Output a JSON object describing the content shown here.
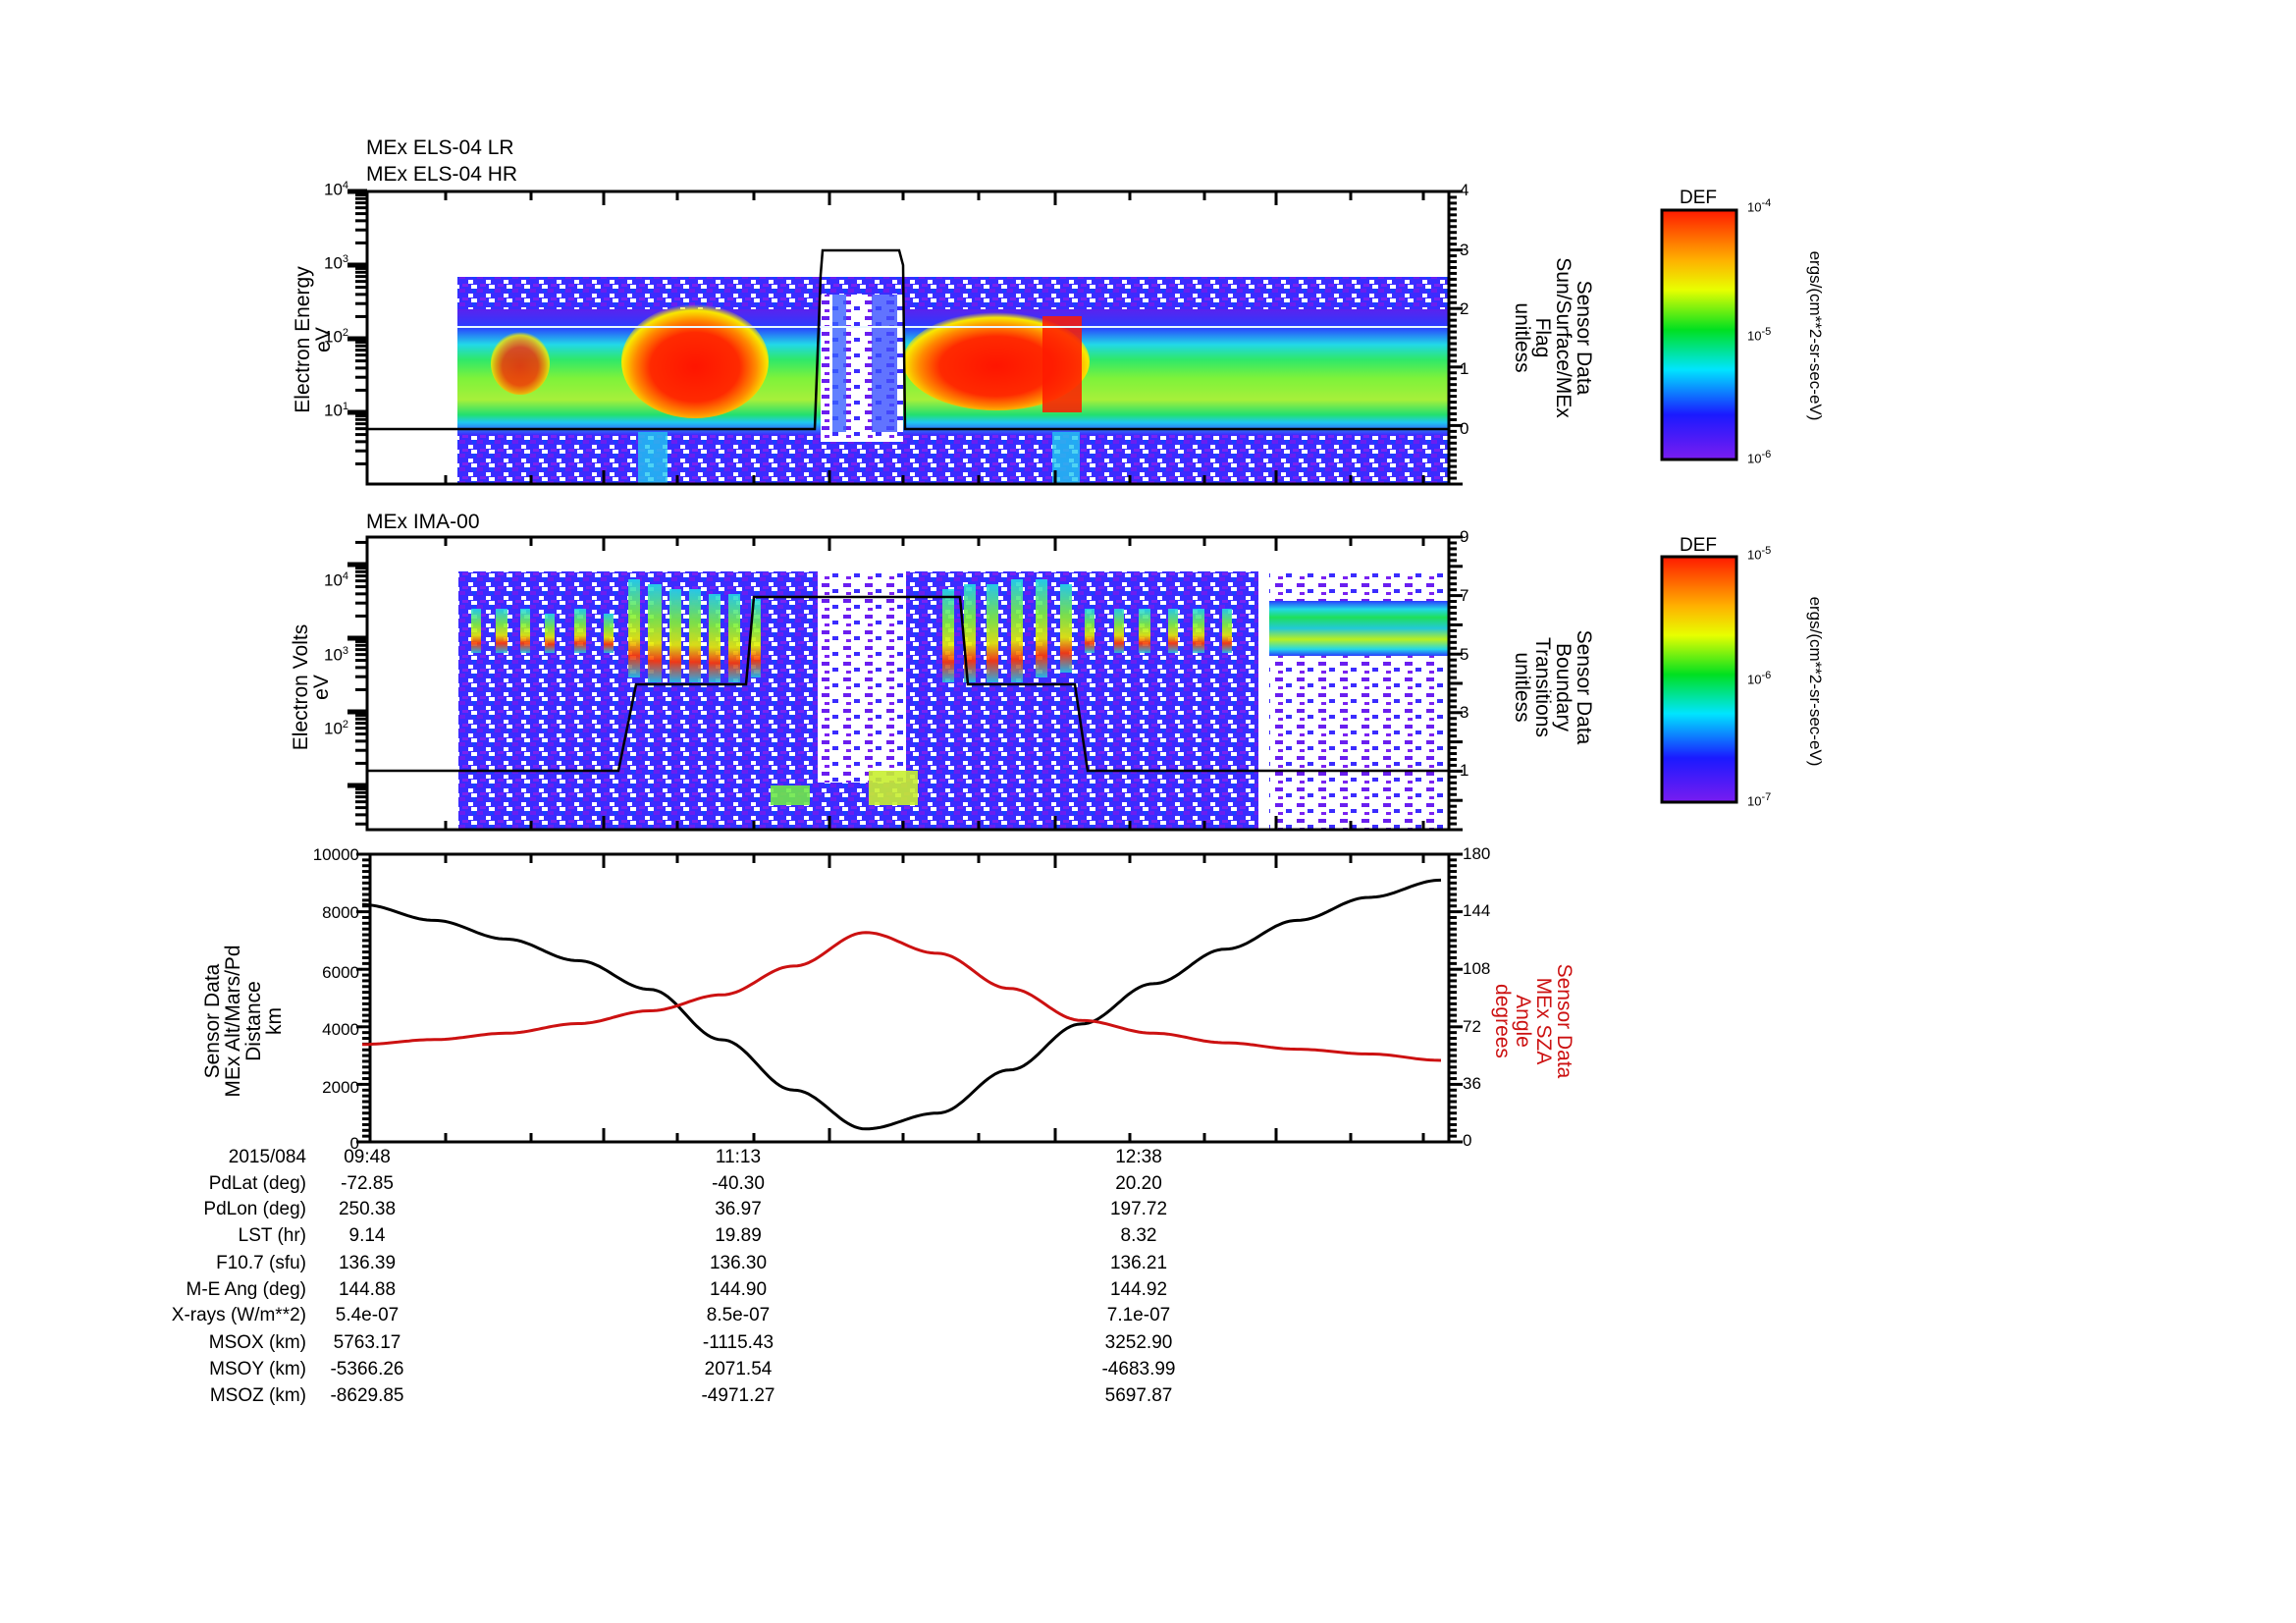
{
  "chart_data": [
    {
      "type": "heatmap",
      "panel": "MEx ELS-04 electron spectrogram",
      "titles": [
        "MEx ELS-04 LR",
        "MEx ELS-04 HR"
      ],
      "ylabel": "Electron Energy\neV",
      "yscale": "log",
      "ylim": [
        1,
        10000
      ],
      "yticks": [
        "10^1",
        "10^2",
        "10^3",
        "10^4"
      ],
      "y2label": "Sensor Data\nSun/Surface/MEx\nFlag\nunitless",
      "y2lim": [
        -1,
        4
      ],
      "y2ticks": [
        0,
        1,
        2,
        3,
        4
      ],
      "colorbar": {
        "title": "DEF",
        "units": "ergs/(cm**2-sr-sec-eV)",
        "range": [
          "10^-6",
          "10^-4"
        ],
        "ticks": [
          "10^-6",
          "10^-5",
          "10^-4"
        ]
      },
      "overlay_line": {
        "name": "Sun/Surface/MEx Flag",
        "segments": [
          {
            "from": "09:48",
            "to": "11:13",
            "value": 0
          },
          {
            "from": "11:14",
            "to": "11:26",
            "value": 3
          },
          {
            "from": "11:27",
            "to": "12:38",
            "value": 0
          }
        ]
      },
      "features": [
        "Intense red flux (~20-100 eV) around 10:25-10:55",
        "Data gap near 11:17-11:22",
        "Intense red flux (~20-150 eV) around 11:40-12:08",
        "Steady green band 5-30 eV thereafter"
      ]
    },
    {
      "type": "heatmap",
      "panel": "MEx IMA-00 ion spectrogram",
      "titles": [
        "MEx IMA-00"
      ],
      "ylabel": "Electron Volts\neV",
      "yscale": "log",
      "ylim": [
        10,
        40000
      ],
      "yticks": [
        "10^2",
        "10^3",
        "10^4"
      ],
      "y2label": "Sensor Data\nBoundary\nTransitions\nunitless",
      "y2lim": [
        -1,
        9
      ],
      "y2ticks": [
        1,
        3,
        5,
        7,
        9
      ],
      "colorbar": {
        "title": "DEF",
        "units": "ergs/(cm**2-sr-sec-eV)",
        "range": [
          "10^-7",
          "10^-5"
        ],
        "ticks": [
          "10^-7",
          "10^-6",
          "10^-5"
        ]
      },
      "overlay_line": {
        "name": "Boundary Transitions",
        "segments": [
          {
            "from": "09:48",
            "to": "10:25",
            "value": 1
          },
          {
            "from": "10:27",
            "to": "10:48",
            "value": 4
          },
          {
            "from": "10:50",
            "to": "11:45",
            "value": 7
          },
          {
            "from": "11:47",
            "to": "12:17",
            "value": 4
          },
          {
            "from": "12:21",
            "to": "14:03",
            "value": 1
          }
        ]
      }
    },
    {
      "type": "line",
      "panel": "Altitude and SZA",
      "x": [
        "09:48",
        "10:05",
        "10:22",
        "10:39",
        "10:56",
        "11:13",
        "11:30",
        "11:47",
        "12:04",
        "12:21",
        "12:38",
        "12:55",
        "13:12",
        "13:29",
        "13:46",
        "14:03"
      ],
      "series": [
        {
          "name": "MEx Alt/Mars/Pd Distance (km)",
          "axis": "left",
          "color": "#000000",
          "values": [
            8250,
            7700,
            7050,
            6300,
            5300,
            3550,
            1800,
            450,
            1000,
            2500,
            4100,
            5500,
            6700,
            7700,
            8500,
            9100
          ]
        },
        {
          "name": "MEx SZA Angle (degrees)",
          "axis": "right",
          "color": "#cc1111",
          "values": [
            61,
            64,
            68,
            74,
            82,
            92,
            110,
            131,
            118,
            96,
            76,
            68,
            62,
            58,
            55,
            51
          ]
        }
      ],
      "ylabel": "Sensor Data\nMEx Alt/Mars/Pd\nDistance\nkm",
      "ylim": [
        0,
        10000
      ],
      "yticks": [
        0,
        2000,
        4000,
        6000,
        8000,
        10000
      ],
      "y2label": "Sensor Data\nMEx SZA\nAngle\ndegrees",
      "y2lim": [
        0,
        180
      ],
      "y2ticks": [
        0,
        36,
        72,
        108,
        144,
        180
      ],
      "xlabel": "2015/084",
      "xticklabels": [
        "09:48",
        "11:13",
        "12:38"
      ],
      "grid": false
    },
    {
      "type": "table",
      "panel": "Ephemeris",
      "columns": [
        "09:48",
        "11:13",
        "12:38"
      ],
      "rows": [
        {
          "label": "PdLat (deg)",
          "values": [
            "-72.85",
            "-40.30",
            "20.20"
          ]
        },
        {
          "label": "PdLon (deg)",
          "values": [
            "250.38",
            "36.97",
            "197.72"
          ]
        },
        {
          "label": "LST (hr)",
          "values": [
            "9.14",
            "19.89",
            "8.32"
          ]
        },
        {
          "label": "F10.7 (sfu)",
          "values": [
            "136.39",
            "136.30",
            "136.21"
          ]
        },
        {
          "label": "M-E Ang (deg)",
          "values": [
            "144.88",
            "144.90",
            "144.92"
          ]
        },
        {
          "label": "X-rays (W/m**2)",
          "values": [
            "5.4e-07",
            "8.5e-07",
            "7.1e-07"
          ]
        },
        {
          "label": "MSOX (km)",
          "values": [
            "5763.17",
            "-1115.43",
            "3252.90"
          ]
        },
        {
          "label": "MSOY (km)",
          "values": [
            "-5366.26",
            "2071.54",
            "-4683.99"
          ]
        },
        {
          "label": "MSOZ (km)",
          "values": [
            "-8629.85",
            "-4971.27",
            "5697.87"
          ]
        }
      ]
    }
  ],
  "panel1": {
    "title1": "MEx ELS-04 LR",
    "title2": "MEx ELS-04 HR",
    "ylabel": "Electron Energy\neV",
    "ylabel_right": "Sensor Data\nSun/Surface/MEx\nFlag\nunitless",
    "left_ticks": [
      {
        "b": "10",
        "e": "4"
      },
      {
        "b": "10",
        "e": "3"
      },
      {
        "b": "10",
        "e": "2"
      },
      {
        "b": "10",
        "e": "1"
      }
    ],
    "right_ticks": [
      "4",
      "3",
      "2",
      "1",
      "0"
    ],
    "cb_title": "DEF",
    "cb_units": "ergs/(cm**2-sr-sec-eV)",
    "cb_ticks": [
      {
        "b": "10",
        "e": "-4"
      },
      {
        "b": "10",
        "e": "-5"
      },
      {
        "b": "10",
        "e": "-6"
      }
    ]
  },
  "panel2": {
    "title": "MEx IMA-00",
    "ylabel": "Electron Volts\neV",
    "ylabel_right": "Sensor Data\nBoundary\nTransitions\nunitless",
    "left_ticks": [
      {
        "b": "10",
        "e": "4"
      },
      {
        "b": "10",
        "e": "3"
      },
      {
        "b": "10",
        "e": "2"
      }
    ],
    "right_ticks": [
      "9",
      "7",
      "5",
      "3",
      "1"
    ],
    "cb_title": "DEF",
    "cb_units": "ergs/(cm**2-sr-sec-eV)",
    "cb_ticks": [
      {
        "b": "10",
        "e": "-5"
      },
      {
        "b": "10",
        "e": "-6"
      },
      {
        "b": "10",
        "e": "-7"
      }
    ]
  },
  "panel3": {
    "ylabel": "Sensor Data\nMEx Alt/Mars/Pd\nDistance\nkm",
    "ylabel_right": "Sensor Data\nMEx SZA\nAngle\ndegrees",
    "left_ticks": [
      "10000",
      "8000",
      "6000",
      "4000",
      "2000",
      "0"
    ],
    "right_ticks": [
      "180",
      "144",
      "108",
      "72",
      "36",
      "0"
    ],
    "colors": {
      "altitude": "#000000",
      "sza": "#cc1111"
    }
  },
  "ephemeris": {
    "date": "2015/084",
    "times": [
      "09:48",
      "11:13",
      "12:38"
    ],
    "labels": [
      "PdLat (deg)",
      "PdLon (deg)",
      "LST (hr)",
      "F10.7 (sfu)",
      "M-E Ang (deg)",
      "X-rays (W/m**2)",
      "MSOX (km)",
      "MSOY (km)",
      "MSOZ (km)"
    ],
    "col0": [
      "-72.85",
      "250.38",
      "9.14",
      "136.39",
      "144.88",
      "5.4e-07",
      "5763.17",
      "-5366.26",
      "-8629.85"
    ],
    "col1": [
      "-40.30",
      "36.97",
      "19.89",
      "136.30",
      "144.90",
      "8.5e-07",
      "-1115.43",
      "2071.54",
      "-4971.27"
    ],
    "col2": [
      "20.20",
      "197.72",
      "8.32",
      "136.21",
      "144.92",
      "7.1e-07",
      "3252.90",
      "-4683.99",
      "5697.87"
    ]
  }
}
